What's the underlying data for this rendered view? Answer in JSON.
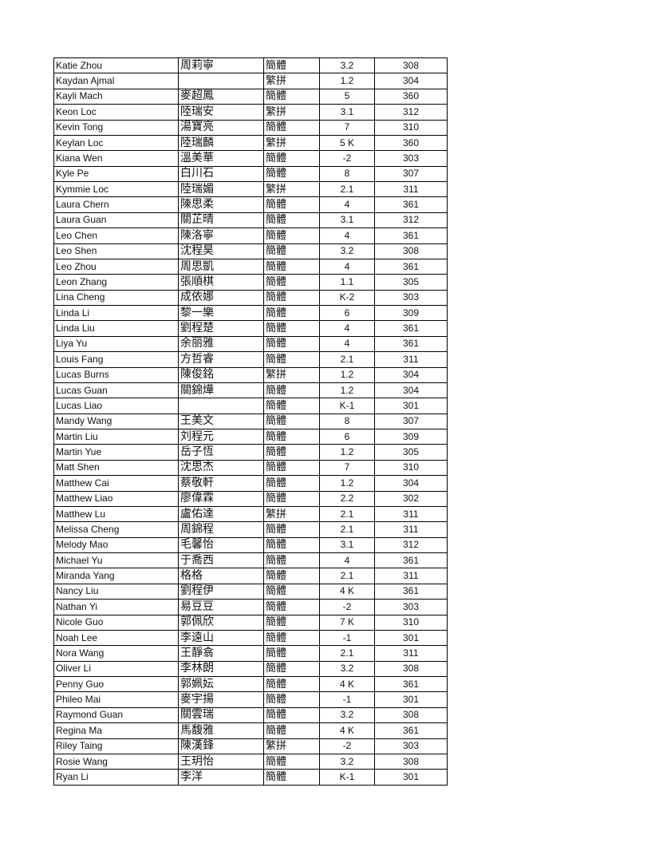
{
  "rows": [
    [
      "Katie Zhou",
      "周莉寧",
      "簡體",
      "3.2",
      "308"
    ],
    [
      "Kaydan Ajmal",
      "",
      "繁拼",
      "1.2",
      "304"
    ],
    [
      "Kayli Mach",
      "麥超鳳",
      "簡體",
      "5",
      "360"
    ],
    [
      "Keon Loc",
      "陸瑞安",
      "繁拼",
      "3.1",
      "312"
    ],
    [
      "Kevin Tong",
      "湯寶亮",
      "簡體",
      "7",
      "310"
    ],
    [
      "Keylan Loc",
      "陸瑞麟",
      "繁拼",
      "5 K",
      "360"
    ],
    [
      "Kiana Wen",
      "溫美華",
      "簡體",
      "-2",
      "303"
    ],
    [
      "Kyle Pe",
      "白川石",
      "簡體",
      "8",
      "307"
    ],
    [
      "Kymmie Loc",
      "陸瑞媚",
      "繁拼",
      "2.1",
      "311"
    ],
    [
      "Laura Chern",
      "陳思柔",
      "簡體",
      "4",
      "361"
    ],
    [
      "Laura Guan",
      "關芷晴",
      "簡體",
      "3.1",
      "312"
    ],
    [
      "Leo Chen",
      "陳洛寧",
      "簡體",
      "4",
      "361"
    ],
    [
      "Leo Shen",
      "沈程昊",
      "簡體",
      "3.2",
      "308"
    ],
    [
      "Leo Zhou",
      "周思凱",
      "簡體",
      "4",
      "361"
    ],
    [
      "Leon Zhang",
      "張順棋",
      "簡體",
      "1.1",
      "305"
    ],
    [
      "Lina Cheng",
      "成依娜",
      "簡體",
      "K-2",
      "303"
    ],
    [
      "Linda Li",
      "黎一樂",
      "簡體",
      "6",
      "309"
    ],
    [
      "Linda Liu",
      "劉程楚",
      "簡體",
      "4",
      "361"
    ],
    [
      "Liya Yu",
      "余丽雅",
      "簡體",
      "4",
      "361"
    ],
    [
      "Louis Fang",
      "方哲睿",
      "簡體",
      "2.1",
      "311"
    ],
    [
      "Lucas Burns",
      "陳俊銘",
      "繁拼",
      "1.2",
      "304"
    ],
    [
      "Lucas Guan",
      "關錦燁",
      "簡體",
      "1.2",
      "304"
    ],
    [
      "Lucas Liao",
      "",
      "簡體",
      "K-1",
      "301"
    ],
    [
      "Mandy Wang",
      "王美文",
      "簡體",
      "8",
      "307"
    ],
    [
      "Martin Liu",
      "刘程元",
      "簡體",
      "6",
      "309"
    ],
    [
      "Martin Yue",
      "岳子恆",
      "簡體",
      "1.2",
      "305"
    ],
    [
      "Matt Shen",
      "沈思杰",
      "簡體",
      "7",
      "310"
    ],
    [
      "Matthew Cai",
      "蔡敬軒",
      "簡體",
      "1.2",
      "304"
    ],
    [
      "Matthew Liao",
      "廖偉霖",
      "簡體",
      "2.2",
      "302"
    ],
    [
      "Matthew Lu",
      "盧佑達",
      "繁拼",
      "2.1",
      "311"
    ],
    [
      "Melissa Cheng",
      "周錦程",
      "簡體",
      "2.1",
      "311"
    ],
    [
      "Melody Mao",
      "毛馨怡",
      "簡體",
      "3.1",
      "312"
    ],
    [
      "Michael Yu",
      "于喬西",
      "簡體",
      "4",
      "361"
    ],
    [
      "Miranda Yang",
      "格格",
      "簡體",
      "2.1",
      "311"
    ],
    [
      "Nancy Liu",
      "劉程伊",
      "簡體",
      "4 K",
      "361"
    ],
    [
      "Nathan Yi",
      "易豆豆",
      "簡體",
      "-2",
      "303"
    ],
    [
      "Nicole Guo",
      "郭佩欣",
      "簡體",
      "7 K",
      "310"
    ],
    [
      "Noah Lee",
      "李遠山",
      "簡體",
      "-1",
      "301"
    ],
    [
      "Nora Wang",
      "王靜翕",
      "簡體",
      "2.1",
      "311"
    ],
    [
      "Oliver Li",
      "李林朗",
      "簡體",
      "3.2",
      "308"
    ],
    [
      "Penny Guo",
      "郭姵妘",
      "簡體",
      "4 K",
      "361"
    ],
    [
      "Phileo Mai",
      "麥宇揚",
      "簡體",
      "-1",
      "301"
    ],
    [
      "Raymond Guan",
      "關雲瑞",
      "簡體",
      "3.2",
      "308"
    ],
    [
      "Regina Ma",
      "馬馥雅",
      "簡體",
      "4 K",
      "361"
    ],
    [
      "Riley Taing",
      "陳漢鋒",
      "繁拼",
      "-2",
      "303"
    ],
    [
      "Rosie Wang",
      "王玥怡",
      "簡體",
      "3.2",
      "308"
    ],
    [
      "Ryan Li",
      "李洋",
      "簡體",
      "K-1",
      "301"
    ]
  ]
}
